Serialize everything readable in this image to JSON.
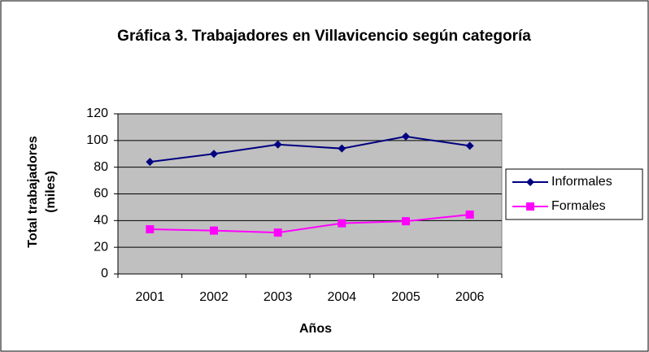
{
  "chart_data": {
    "type": "line",
    "title": "Gráfica 3. Trabajadores en Villavicencio según categoría",
    "x_label": "Años",
    "y_label": "Total trabajadores (miles)",
    "categories": [
      "2001",
      "2002",
      "2003",
      "2004",
      "2005",
      "2006"
    ],
    "series": [
      {
        "name": "Informales",
        "color": "#000080",
        "marker": "diamond",
        "values": [
          84,
          90,
          97,
          94,
          103,
          96
        ]
      },
      {
        "name": "Formales",
        "color": "#ff00ff",
        "marker": "square",
        "values": [
          33.5,
          32.5,
          31,
          38,
          39.5,
          44.5
        ]
      }
    ],
    "ylim": [
      0,
      120
    ],
    "yticks": [
      0,
      20,
      40,
      60,
      80,
      100,
      120
    ],
    "grid": true,
    "legend": "right",
    "plot_background": "#c0c0c0"
  }
}
